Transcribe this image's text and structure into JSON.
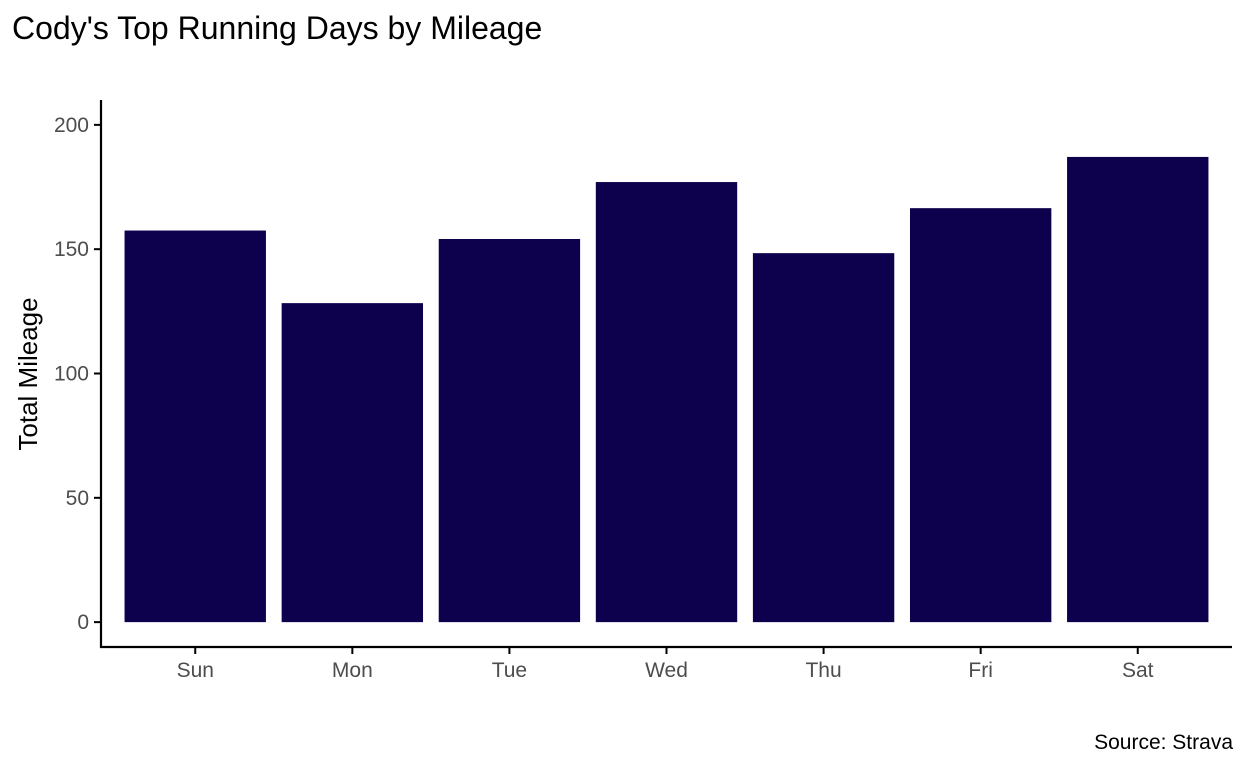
{
  "chart_data": {
    "type": "bar",
    "title": "Cody's Top Running Days by Mileage",
    "xlabel": "",
    "ylabel": "Total Mileage",
    "caption": "Source: Strava",
    "categories": [
      "Sun",
      "Mon",
      "Tue",
      "Wed",
      "Thu",
      "Fri",
      "Sat"
    ],
    "values": [
      157.5,
      128.3,
      154.1,
      177.0,
      148.4,
      166.5,
      187.1
    ],
    "ylim": [
      -10,
      210
    ],
    "yticks": [
      0,
      50,
      100,
      150,
      200
    ],
    "grid": false,
    "legend": "none",
    "bar_color": "#0d004c",
    "axis_color": "#000000",
    "tick_label_color": "#4d4d4d"
  }
}
